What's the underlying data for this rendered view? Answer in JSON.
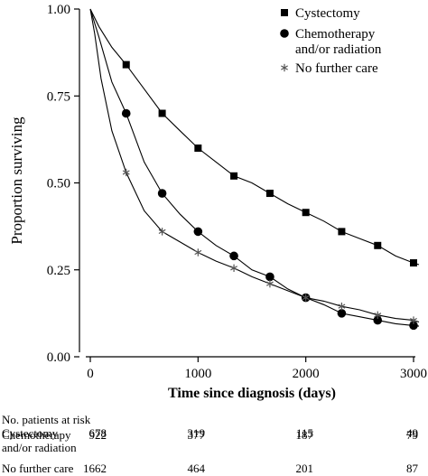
{
  "chart_data": {
    "type": "line",
    "subtype": "kaplan-meier",
    "xlabel": "Time since diagnosis (days)",
    "ylabel": "Proportion surviving",
    "xlim": [
      0,
      3000
    ],
    "ylim": [
      0,
      1
    ],
    "x_ticks": [
      0,
      1000,
      2000,
      3000
    ],
    "x_tick_labels": [
      "0",
      "1000",
      "2000",
      "3000"
    ],
    "y_ticks": [
      0,
      0.25,
      0.5,
      0.75,
      1.0
    ],
    "y_tick_labels": [
      "0.00",
      "0.25",
      "0.50",
      "0.75",
      "1.00"
    ],
    "grid": false,
    "legend_position": "top-right",
    "series": [
      {
        "name": "Cystectomy",
        "marker": "square",
        "points": [
          [
            0,
            1.0
          ],
          [
            80,
            0.95
          ],
          [
            200,
            0.89
          ],
          [
            333,
            0.84
          ],
          [
            500,
            0.77
          ],
          [
            667,
            0.7
          ],
          [
            833,
            0.65
          ],
          [
            1000,
            0.6
          ],
          [
            1167,
            0.56
          ],
          [
            1333,
            0.52
          ],
          [
            1500,
            0.5
          ],
          [
            1667,
            0.47
          ],
          [
            1833,
            0.44
          ],
          [
            2000,
            0.415
          ],
          [
            2167,
            0.39
          ],
          [
            2333,
            0.36
          ],
          [
            2500,
            0.34
          ],
          [
            2667,
            0.32
          ],
          [
            2833,
            0.29
          ],
          [
            3000,
            0.27
          ],
          [
            3050,
            0.265
          ]
        ],
        "marker_x": [
          333,
          667,
          1000,
          1333,
          1667,
          2000,
          2333,
          2667,
          3000
        ]
      },
      {
        "name": "Chemotherapy\nand/or radiation",
        "marker": "circle",
        "points": [
          [
            0,
            1.0
          ],
          [
            80,
            0.92
          ],
          [
            200,
            0.79
          ],
          [
            333,
            0.7
          ],
          [
            500,
            0.56
          ],
          [
            667,
            0.47
          ],
          [
            833,
            0.41
          ],
          [
            1000,
            0.36
          ],
          [
            1167,
            0.32
          ],
          [
            1333,
            0.29
          ],
          [
            1500,
            0.25
          ],
          [
            1667,
            0.23
          ],
          [
            1833,
            0.195
          ],
          [
            2000,
            0.17
          ],
          [
            2167,
            0.15
          ],
          [
            2333,
            0.125
          ],
          [
            2500,
            0.115
          ],
          [
            2667,
            0.105
          ],
          [
            2833,
            0.095
          ],
          [
            3000,
            0.09
          ],
          [
            3050,
            0.088
          ]
        ],
        "marker_x": [
          333,
          667,
          1000,
          1333,
          1667,
          2000,
          2333,
          2667,
          3000
        ]
      },
      {
        "name": "No further care",
        "marker": "asterisk",
        "points": [
          [
            0,
            1.0
          ],
          [
            40,
            0.93
          ],
          [
            100,
            0.8
          ],
          [
            200,
            0.65
          ],
          [
            333,
            0.53
          ],
          [
            500,
            0.42
          ],
          [
            667,
            0.36
          ],
          [
            833,
            0.33
          ],
          [
            1000,
            0.3
          ],
          [
            1167,
            0.275
          ],
          [
            1333,
            0.255
          ],
          [
            1500,
            0.23
          ],
          [
            1667,
            0.21
          ],
          [
            1833,
            0.19
          ],
          [
            2000,
            0.17
          ],
          [
            2167,
            0.16
          ],
          [
            2333,
            0.145
          ],
          [
            2500,
            0.135
          ],
          [
            2667,
            0.12
          ],
          [
            2833,
            0.11
          ],
          [
            3000,
            0.105
          ],
          [
            3050,
            0.1
          ]
        ],
        "marker_x": [
          333,
          667,
          1000,
          1333,
          1667,
          2000,
          2333,
          2667,
          3000
        ]
      }
    ]
  },
  "risk_table": {
    "title": "No. patients at risk",
    "rows": [
      {
        "label": "Cystectomy",
        "values": [
          "678",
          "319",
          "115",
          "49"
        ]
      },
      {
        "label": "Chemotherapy\nand/or radiation",
        "values": [
          "922",
          "377",
          "187",
          "79"
        ]
      },
      {
        "label": "No further care",
        "values": [
          "1662",
          "464",
          "201",
          "87"
        ]
      }
    ]
  }
}
